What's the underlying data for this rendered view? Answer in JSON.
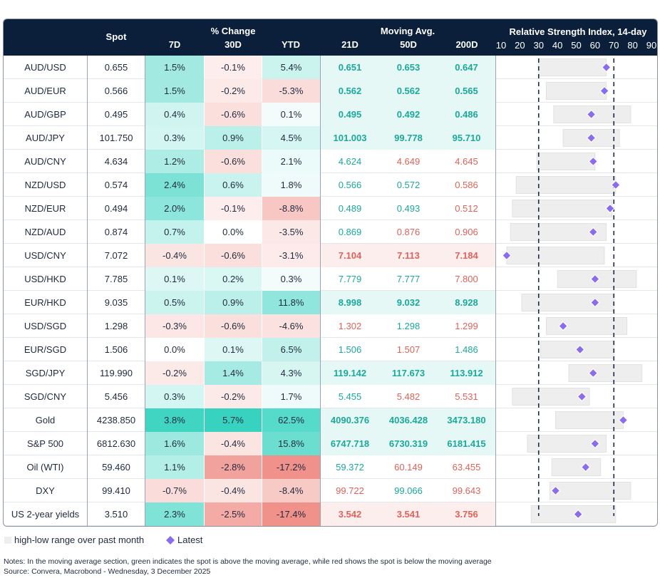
{
  "header": {
    "spot": "Spot",
    "pct_group": "% Change",
    "d7": "7D",
    "d30": "30D",
    "ytd": "YTD",
    "ma_group": "Moving Avg.",
    "ma21": "21D",
    "ma50": "50D",
    "ma200": "200D",
    "rsi_title": "Relative Strength Index, 14-day",
    "rsi_ticks": [
      "10",
      "20",
      "30",
      "40",
      "50",
      "60",
      "70",
      "80",
      "90"
    ]
  },
  "legend": {
    "range_label": "high-low range over past month",
    "latest_label": "Latest"
  },
  "notes": {
    "line1": "Notes: In the moving average section, green indicates the spot is above the moving average, while red shows the spot is below the moving average",
    "line2": "Source: Convera, Macrobond - Wednesday, 3 December 2025"
  },
  "colors": {
    "header_bg": "#0b1f3a",
    "green_text": "#1aa99a",
    "red_text": "#e0625a",
    "range_bar": "#eeeeee",
    "diamond": "#8b6cf0",
    "dashed": "#1a2a44"
  },
  "chart_data": {
    "type": "table",
    "rsi_axis": {
      "min": 10,
      "max": 90,
      "reference_lines": [
        30,
        70
      ]
    },
    "columns": [
      "Pair",
      "Spot",
      "7D",
      "30D",
      "YTD",
      "21D",
      "50D",
      "200D",
      "RSI range low",
      "RSI range high",
      "RSI latest"
    ],
    "rows": [
      {
        "pair": "AUD/USD",
        "spot": "0.655",
        "d7": "1.5%",
        "d30": "-0.1%",
        "ytd": "5.4%",
        "ma21": "0.651",
        "ma50": "0.653",
        "ma200": "0.647",
        "rsi_low": 30,
        "rsi_high": 66,
        "rsi": 66
      },
      {
        "pair": "AUD/EUR",
        "spot": "0.566",
        "d7": "1.5%",
        "d30": "-0.2%",
        "ytd": "-5.3%",
        "ma21": "0.562",
        "ma50": "0.562",
        "ma200": "0.565",
        "rsi_low": 34,
        "rsi_high": 66,
        "rsi": 65
      },
      {
        "pair": "AUD/GBP",
        "spot": "0.495",
        "d7": "0.4%",
        "d30": "-0.6%",
        "ytd": "0.1%",
        "ma21": "0.495",
        "ma50": "0.492",
        "ma200": "0.486",
        "rsi_low": 38,
        "rsi_high": 79,
        "rsi": 58
      },
      {
        "pair": "AUD/JPY",
        "spot": "101.750",
        "d7": "0.3%",
        "d30": "0.9%",
        "ytd": "4.5%",
        "ma21": "101.003",
        "ma50": "99.778",
        "ma200": "95.710",
        "rsi_low": 43,
        "rsi_high": 73,
        "rsi": 58
      },
      {
        "pair": "AUD/CNY",
        "spot": "4.634",
        "d7": "1.2%",
        "d30": "-0.6%",
        "ytd": "2.1%",
        "ma21": "4.624",
        "ma50": "4.649",
        "ma200": "4.645",
        "rsi_low": 29,
        "rsi_high": 60,
        "rsi": 59
      },
      {
        "pair": "NZD/USD",
        "spot": "0.574",
        "d7": "2.4%",
        "d30": "0.6%",
        "ytd": "1.8%",
        "ma21": "0.566",
        "ma50": "0.572",
        "ma200": "0.586",
        "rsi_low": 18,
        "rsi_high": 71,
        "rsi": 71
      },
      {
        "pair": "NZD/EUR",
        "spot": "0.494",
        "d7": "2.0%",
        "d30": "-0.1%",
        "ytd": "-8.8%",
        "ma21": "0.489",
        "ma50": "0.493",
        "ma200": "0.512",
        "rsi_low": 16,
        "rsi_high": 69,
        "rsi": 68
      },
      {
        "pair": "NZD/AUD",
        "spot": "0.874",
        "d7": "0.7%",
        "d30": "0.0%",
        "ytd": "-3.5%",
        "ma21": "0.869",
        "ma50": "0.876",
        "ma200": "0.906",
        "rsi_low": 15,
        "rsi_high": 66,
        "rsi": 59
      },
      {
        "pair": "USD/CNY",
        "spot": "7.072",
        "d7": "-0.4%",
        "d30": "-0.6%",
        "ytd": "-3.1%",
        "ma21": "7.104",
        "ma50": "7.113",
        "ma200": "7.184",
        "rsi_low": 13,
        "rsi_high": 65,
        "rsi": 13
      },
      {
        "pair": "USD/HKD",
        "spot": "7.785",
        "d7": "0.1%",
        "d30": "0.2%",
        "ytd": "0.3%",
        "ma21": "7.779",
        "ma50": "7.777",
        "ma200": "7.800",
        "rsi_low": 40,
        "rsi_high": 82,
        "rsi": 60
      },
      {
        "pair": "EUR/HKD",
        "spot": "9.035",
        "d7": "0.5%",
        "d30": "0.9%",
        "ytd": "11.8%",
        "ma21": "8.998",
        "ma50": "9.032",
        "ma200": "8.928",
        "rsi_low": 21,
        "rsi_high": 70,
        "rsi": 60
      },
      {
        "pair": "USD/SGD",
        "spot": "1.298",
        "d7": "-0.3%",
        "d30": "-0.6%",
        "ytd": "-4.6%",
        "ma21": "1.302",
        "ma50": "1.298",
        "ma200": "1.299",
        "rsi_low": 34,
        "rsi_high": 77,
        "rsi": 43
      },
      {
        "pair": "EUR/SGD",
        "spot": "1.506",
        "d7": "0.0%",
        "d30": "0.1%",
        "ytd": "6.5%",
        "ma21": "1.506",
        "ma50": "1.507",
        "ma200": "1.486",
        "rsi_low": 31,
        "rsi_high": 70,
        "rsi": 52
      },
      {
        "pair": "SGD/JPY",
        "spot": "119.990",
        "d7": "-0.2%",
        "d30": "1.4%",
        "ytd": "4.3%",
        "ma21": "119.142",
        "ma50": "117.673",
        "ma200": "113.912",
        "rsi_low": 46,
        "rsi_high": 85,
        "rsi": 59
      },
      {
        "pair": "SGD/CNY",
        "spot": "5.456",
        "d7": "0.3%",
        "d30": "-0.2%",
        "ytd": "1.7%",
        "ma21": "5.455",
        "ma50": "5.482",
        "ma200": "5.531",
        "rsi_low": 16,
        "rsi_high": 57,
        "rsi": 53
      },
      {
        "pair": "Gold",
        "spot": "4238.850",
        "d7": "3.8%",
        "d30": "5.7%",
        "ytd": "62.5%",
        "ma21": "4090.376",
        "ma50": "4036.428",
        "ma200": "3473.180",
        "rsi_low": 39,
        "rsi_high": 75,
        "rsi": 75
      },
      {
        "pair": "S&P 500",
        "spot": "6812.630",
        "d7": "1.6%",
        "d30": "-0.4%",
        "ytd": "15.8%",
        "ma21": "6747.718",
        "ma50": "6730.319",
        "ma200": "6181.415",
        "rsi_low": 24,
        "rsi_high": 66,
        "rsi": 60
      },
      {
        "pair": "Oil (WTI)",
        "spot": "59.460",
        "d7": "1.1%",
        "d30": "-2.8%",
        "ytd": "-17.2%",
        "ma21": "59.372",
        "ma50": "60.149",
        "ma200": "63.455",
        "rsi_low": 37,
        "rsi_high": 63,
        "rsi": 55
      },
      {
        "pair": "DXY",
        "spot": "99.410",
        "d7": "-0.7%",
        "d30": "-0.4%",
        "ytd": "-8.4%",
        "ma21": "99.722",
        "ma50": "99.066",
        "ma200": "99.643",
        "rsi_low": 36,
        "rsi_high": 79,
        "rsi": 39
      },
      {
        "pair": "US 2-year yields",
        "spot": "3.510",
        "d7": "2.3%",
        "d30": "-2.5%",
        "ytd": "-17.4%",
        "ma21": "3.542",
        "ma50": "3.541",
        "ma200": "3.756",
        "rsi_low": 26,
        "rsi_high": 71,
        "rsi": 51
      }
    ]
  }
}
